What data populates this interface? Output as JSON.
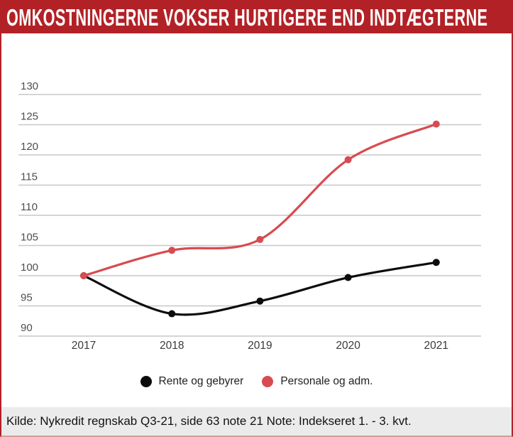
{
  "header": {
    "title": "OMKOSTNINGERNE VOKSER HURTIGERE END INDTÆGTERNE",
    "background": "#b22126",
    "text_color": "#ffffff"
  },
  "chart_data": {
    "type": "line",
    "categories": [
      "2017",
      "2018",
      "2019",
      "2020",
      "2021"
    ],
    "series": [
      {
        "name": "Rente og gebyrer",
        "color": "#0c0c0c",
        "values": [
          100,
          93.7,
          95.8,
          99.7,
          102.2
        ]
      },
      {
        "name": "Personale og adm.",
        "color": "#d84b50",
        "values": [
          100,
          104.2,
          106.0,
          119.2,
          125.1
        ]
      }
    ],
    "title": "Omkostningerne vokser hurtigere end indtægterne",
    "xlabel": "",
    "ylabel": "",
    "ylim": [
      90,
      130
    ],
    "ytick_step": 5,
    "grid": true,
    "legend_position": "bottom",
    "note": "Indekseret 1. - 3. kvt."
  },
  "footer": {
    "text": "Kilde: Nykredit regnskab Q3-21, side 63 note 21 Note: Indekseret 1. - 3. kvt."
  }
}
